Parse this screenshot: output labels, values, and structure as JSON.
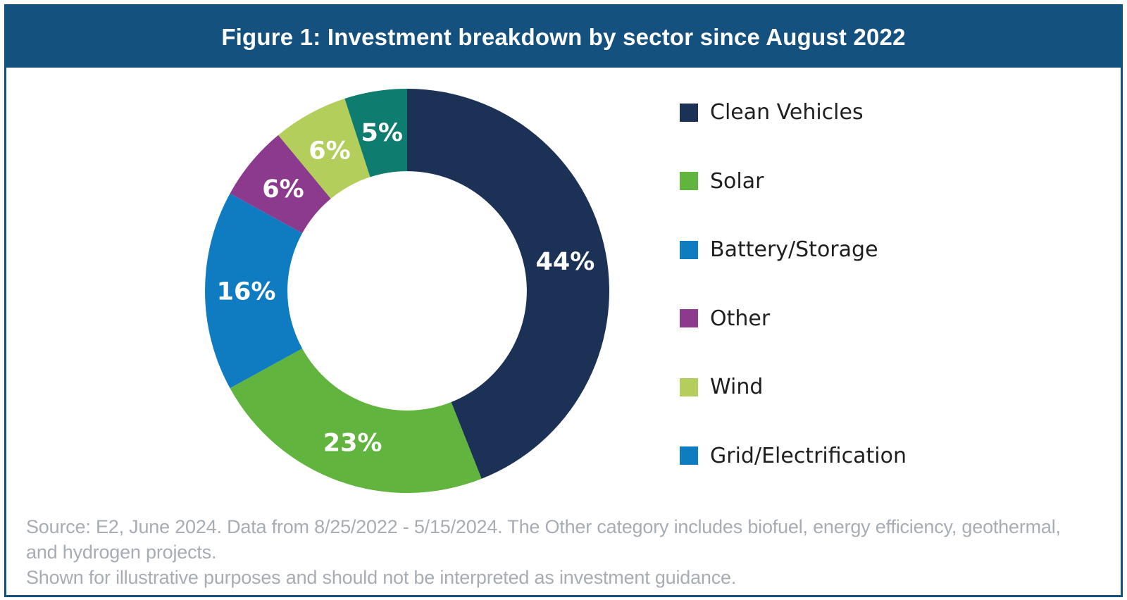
{
  "header": {
    "title": "Figure 1: Investment breakdown by sector since August 2022",
    "background": "#15517E",
    "text_color": "#FFFFFF"
  },
  "chart_data": {
    "type": "pie",
    "subtype": "donut",
    "title": "Figure 1: Investment breakdown by sector since August 2022",
    "start_angle_deg": 0,
    "direction": "clockwise",
    "inner_radius_ratio": 0.592,
    "label_color": "#FFFFFF",
    "segments": [
      {
        "label": "Clean Vehicles",
        "value": 44,
        "display": "44%",
        "color": "#1C3156"
      },
      {
        "label": "Solar",
        "value": 23,
        "display": "23%",
        "color": "#61B43E"
      },
      {
        "label": "Battery/Storage",
        "value": 16,
        "display": "16%",
        "color": "#0F7CC2"
      },
      {
        "label": "Other",
        "value": 6,
        "display": "6%",
        "color": "#8B3A8E"
      },
      {
        "label": "Wind",
        "value": 6,
        "display": "6%",
        "color": "#B4CE5C"
      },
      {
        "label": "Grid/Electrification",
        "value": 5,
        "display": "5%",
        "color": "#0E7C6F"
      }
    ],
    "legend": {
      "position": "right",
      "items": [
        {
          "label": "Clean Vehicles",
          "swatch": "#1C3156"
        },
        {
          "label": "Solar",
          "swatch": "#61B43E"
        },
        {
          "label": "Battery/Storage",
          "swatch": "#0F7CC2"
        },
        {
          "label": "Other",
          "swatch": "#8B3A8E"
        },
        {
          "label": "Wind",
          "swatch": "#B4CE5C"
        },
        {
          "label": "Grid/Electrification",
          "swatch": "#0F7CC2"
        }
      ]
    }
  },
  "footer": {
    "source_line1": "Source: E2, June 2024. Data from 8/25/2022 - 5/15/2024. The Other category includes biofuel, energy efficiency, geothermal, and hydrogen projects.",
    "source_line2": "Shown for illustrative purposes and should not be interpreted as investment guidance.",
    "text_color": "#A7ADB3"
  },
  "frame_color": "#15517E"
}
